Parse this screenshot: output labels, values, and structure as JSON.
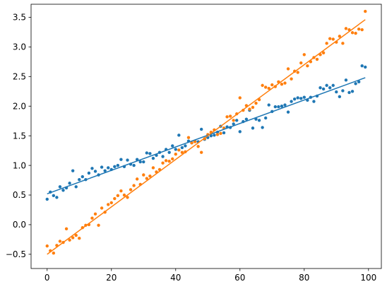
{
  "chart_data": {
    "type": "scatter",
    "title": "",
    "xlabel": "",
    "ylabel": "",
    "xlim": [
      -5,
      104
    ],
    "ylim": [
      -0.74,
      3.72
    ],
    "x_ticks": [
      0,
      20,
      40,
      60,
      80,
      100
    ],
    "y_ticks": [
      -0.5,
      0.0,
      0.5,
      1.0,
      1.5,
      2.0,
      2.5,
      3.0,
      3.5
    ],
    "x_tick_labels": [
      "0",
      "20",
      "40",
      "60",
      "80",
      "100"
    ],
    "y_tick_labels": [
      "−0.5",
      "0.0",
      "0.5",
      "1.0",
      "1.5",
      "2.0",
      "2.5",
      "3.0",
      "3.5"
    ],
    "grid": false,
    "series": [
      {
        "color": "#1f77b4",
        "fit_line": {
          "x": [
            0,
            99
          ],
          "y": [
            0.52,
            2.48
          ]
        },
        "x": [
          0,
          1,
          2,
          3,
          4,
          5,
          6,
          7,
          8,
          9,
          10,
          11,
          12,
          13,
          14,
          15,
          16,
          17,
          18,
          19,
          20,
          21,
          22,
          23,
          24,
          25,
          26,
          27,
          28,
          29,
          30,
          31,
          32,
          33,
          34,
          35,
          36,
          37,
          38,
          39,
          40,
          41,
          42,
          43,
          44,
          45,
          46,
          47,
          48,
          49,
          50,
          51,
          52,
          53,
          54,
          55,
          56,
          57,
          58,
          59,
          60,
          61,
          62,
          63,
          64,
          65,
          66,
          67,
          68,
          69,
          70,
          71,
          72,
          73,
          74,
          75,
          76,
          77,
          78,
          79,
          80,
          81,
          82,
          83,
          84,
          85,
          86,
          87,
          88,
          89,
          90,
          91,
          92,
          93,
          94,
          95,
          96,
          97,
          98,
          99
        ],
        "y": [
          0.43,
          0.55,
          0.49,
          0.46,
          0.64,
          0.58,
          0.62,
          0.7,
          0.91,
          0.64,
          0.76,
          0.81,
          0.76,
          0.87,
          0.95,
          0.9,
          0.84,
          0.97,
          0.91,
          0.96,
          0.93,
          0.98,
          1.0,
          1.1,
          0.98,
          1.09,
          1.02,
          1.0,
          1.1,
          1.06,
          1.06,
          1.21,
          1.2,
          1.12,
          1.17,
          1.22,
          1.15,
          1.27,
          1.22,
          1.33,
          1.27,
          1.51,
          1.3,
          1.33,
          1.41,
          1.38,
          1.41,
          1.4,
          1.61,
          1.44,
          1.47,
          1.5,
          1.51,
          1.56,
          1.66,
          1.55,
          1.65,
          1.64,
          1.7,
          1.76,
          1.57,
          1.74,
          1.78,
          1.93,
          1.63,
          1.78,
          1.76,
          1.64,
          1.8,
          2.02,
          1.91,
          1.99,
          1.99,
          2.0,
          2.02,
          1.9,
          2.08,
          2.12,
          2.14,
          2.13,
          2.15,
          2.1,
          2.15,
          2.08,
          2.17,
          2.31,
          2.29,
          2.35,
          2.31,
          2.35,
          2.24,
          2.16,
          2.26,
          2.44,
          2.23,
          2.25,
          2.38,
          2.41,
          2.68,
          2.66
        ]
      },
      {
        "color": "#ff7f0e",
        "fit_line": {
          "x": [
            0,
            99
          ],
          "y": [
            -0.5,
            3.46
          ]
        },
        "x": [
          0,
          1,
          2,
          3,
          4,
          5,
          6,
          7,
          8,
          9,
          10,
          11,
          12,
          13,
          14,
          15,
          16,
          17,
          18,
          19,
          20,
          21,
          22,
          23,
          24,
          25,
          26,
          27,
          28,
          29,
          30,
          31,
          32,
          33,
          34,
          35,
          36,
          37,
          38,
          39,
          40,
          41,
          42,
          43,
          44,
          45,
          46,
          47,
          48,
          49,
          50,
          51,
          52,
          53,
          54,
          55,
          56,
          57,
          58,
          59,
          60,
          61,
          62,
          63,
          64,
          65,
          66,
          67,
          68,
          69,
          70,
          71,
          72,
          73,
          74,
          75,
          76,
          77,
          78,
          79,
          80,
          81,
          82,
          83,
          84,
          85,
          86,
          87,
          88,
          89,
          90,
          91,
          92,
          93,
          94,
          95,
          96,
          97,
          98,
          99
        ],
        "y": [
          -0.36,
          -0.44,
          -0.48,
          -0.35,
          -0.28,
          -0.3,
          -0.07,
          -0.26,
          -0.22,
          -0.18,
          -0.23,
          -0.05,
          -0.01,
          0.0,
          0.11,
          0.18,
          -0.01,
          0.28,
          0.21,
          0.34,
          0.37,
          0.44,
          0.49,
          0.57,
          0.5,
          0.46,
          0.59,
          0.66,
          0.77,
          0.68,
          0.84,
          0.78,
          0.82,
          0.96,
          0.89,
          0.93,
          1.04,
          1.08,
          1.07,
          1.11,
          1.19,
          1.26,
          1.22,
          1.23,
          1.47,
          1.38,
          1.4,
          1.32,
          1.22,
          1.45,
          1.52,
          1.56,
          1.6,
          1.52,
          1.54,
          1.63,
          1.82,
          1.83,
          1.76,
          1.87,
          2.14,
          1.93,
          2.01,
          1.95,
          1.98,
          2.05,
          2.11,
          2.35,
          2.32,
          2.3,
          2.36,
          2.33,
          2.41,
          2.37,
          2.39,
          2.63,
          2.46,
          2.59,
          2.57,
          2.73,
          2.87,
          2.68,
          2.75,
          2.82,
          2.79,
          2.87,
          2.9,
          3.06,
          3.14,
          3.13,
          3.08,
          3.18,
          3.06,
          3.31,
          3.29,
          3.24,
          3.23,
          3.3,
          3.29,
          3.6
        ]
      }
    ]
  }
}
